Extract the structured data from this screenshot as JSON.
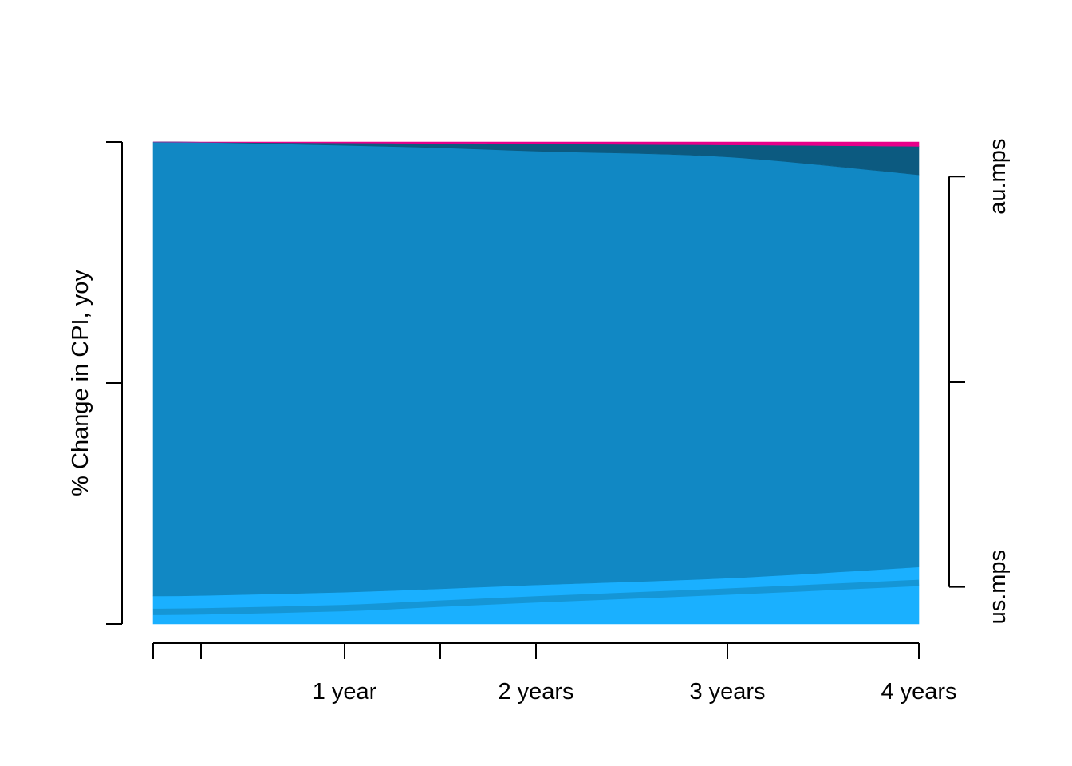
{
  "chart_data": {
    "type": "area",
    "ylabel": "% Change in CPI, yoy",
    "x": [
      0,
      0.25,
      1,
      1.5,
      2,
      3,
      4
    ],
    "x_ticks": [
      {
        "x": 0,
        "label": ""
      },
      {
        "x": 0.25,
        "label": ""
      },
      {
        "x": 1,
        "label": "1 year"
      },
      {
        "x": 1.5,
        "label": ""
      },
      {
        "x": 2,
        "label": "2 years"
      },
      {
        "x": 3,
        "label": "3 years"
      },
      {
        "x": 4,
        "label": "4 years"
      }
    ],
    "xlim": [
      0,
      4
    ],
    "ylim": [
      0,
      1
    ],
    "y_ticks": [
      0,
      0.5,
      1
    ],
    "bands": [
      {
        "color": "#1ab0ff",
        "lower": [
          0,
          0,
          0,
          0,
          0,
          0,
          0
        ],
        "upper": [
          0.058,
          0.059,
          0.066,
          0.073,
          0.081,
          0.095,
          0.118
        ]
      },
      {
        "color": "#1188c4",
        "lower": [
          0.058,
          0.059,
          0.066,
          0.073,
          0.081,
          0.095,
          0.118
        ],
        "upper": [
          1.0,
          0.9995,
          0.993,
          0.988,
          0.981,
          0.969,
          0.932
        ]
      },
      {
        "color": "#0c5a80",
        "lower": [
          1.0,
          0.9995,
          0.993,
          0.988,
          0.981,
          0.969,
          0.932
        ],
        "upper": [
          1.0,
          0.9995,
          0.998,
          0.997,
          0.996,
          0.994,
          0.991
        ]
      },
      {
        "color": "#e8008a",
        "lower": [
          1.0,
          0.9995,
          0.998,
          0.997,
          0.996,
          0.994,
          0.991
        ],
        "upper": [
          1.0,
          1.0,
          1.0,
          1.0,
          1.0,
          1.0,
          1.0
        ]
      }
    ],
    "inner_line": {
      "color": "#1596d6",
      "values": [
        0.025,
        0.026,
        0.033,
        0.042,
        0.051,
        0.067,
        0.085
      ]
    },
    "right_axis": {
      "ticks": [
        {
          "value": 0.04,
          "label": "us.mps"
        },
        {
          "value": 0.5,
          "label": ""
        },
        {
          "value": 0.962,
          "label": "au.mps"
        }
      ]
    }
  }
}
